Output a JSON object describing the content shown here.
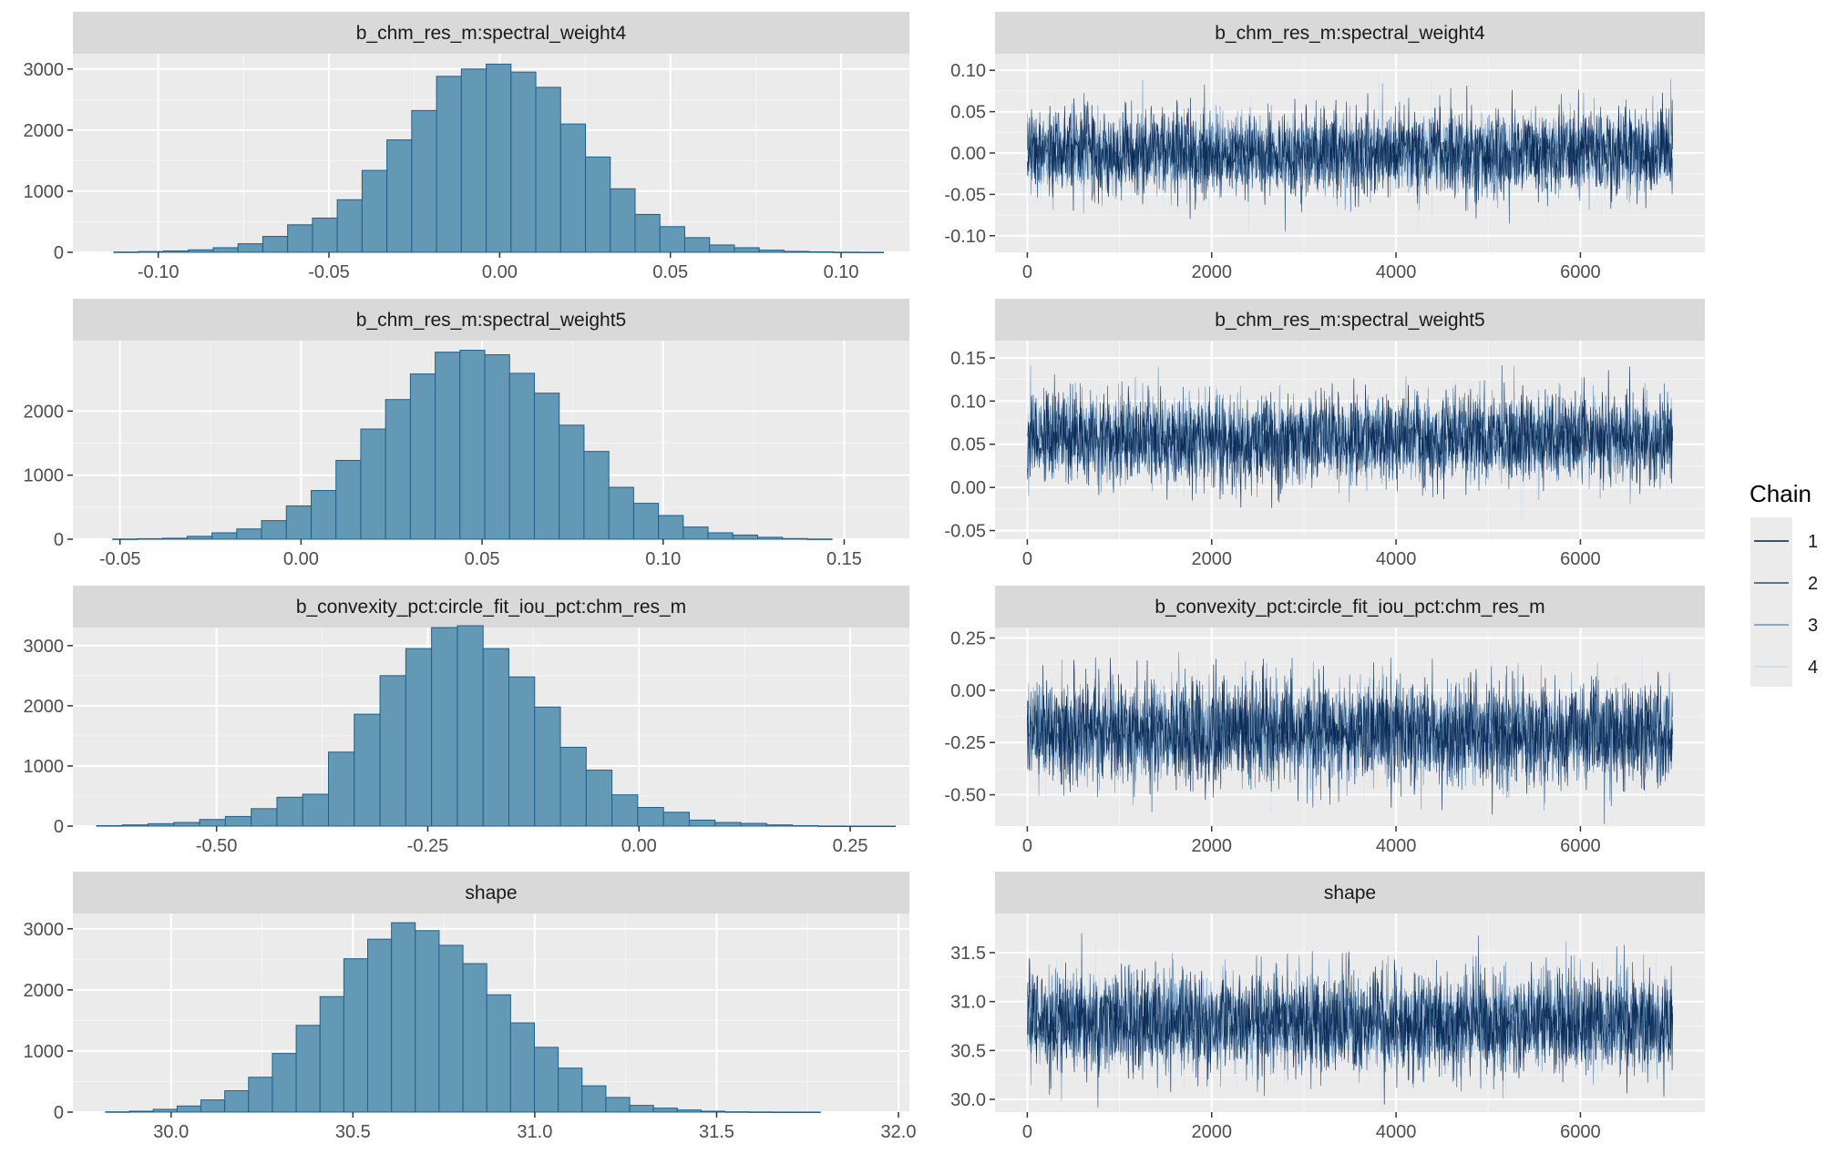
{
  "colors": {
    "panel_bg": "#ebebeb",
    "strip_bg": "#d9d9d9",
    "grid_major": "#ffffff",
    "hist_fill": "#6399b5",
    "hist_stroke": "#1f5f8b",
    "trace_band": "#d4e3ee",
    "chain_colors": [
      "#011f4b",
      "#1f4e7a",
      "#6a93bd",
      "#c6d9ea"
    ]
  },
  "legend": {
    "title": "Chain",
    "items": [
      "1",
      "2",
      "3",
      "4"
    ]
  },
  "chart_data": [
    {
      "type": "bar",
      "role": "histogram",
      "title": "b_chm_res_m:spectral_weight4",
      "x_ticks": [
        -0.1,
        -0.05,
        0.0,
        0.05,
        0.1
      ],
      "x_tick_labels": [
        "-0.10",
        "-0.05",
        "0.00",
        "0.05",
        "0.10"
      ],
      "y_ticks": [
        0,
        1000,
        2000,
        3000
      ],
      "y_tick_labels": [
        "0",
        "1000",
        "2000",
        "3000"
      ],
      "xlim": [
        -0.125,
        0.12
      ],
      "ylim": [
        0,
        3250
      ],
      "bin_edges_start": -0.113,
      "bin_width": 0.00727,
      "values": [
        5,
        12,
        22,
        40,
        75,
        140,
        260,
        450,
        560,
        860,
        1340,
        1840,
        2320,
        2880,
        3000,
        3080,
        2950,
        2700,
        2100,
        1560,
        1040,
        620,
        420,
        240,
        120,
        75,
        35,
        15,
        8,
        3,
        1
      ]
    },
    {
      "type": "line",
      "role": "trace",
      "title": "b_chm_res_m:spectral_weight4",
      "x_ticks": [
        0,
        2000,
        4000,
        6000
      ],
      "x_tick_labels": [
        "0",
        "2000",
        "4000",
        "6000"
      ],
      "y_ticks": [
        -0.1,
        -0.05,
        0.0,
        0.05,
        0.1
      ],
      "y_tick_labels": [
        "-0.10",
        "-0.05",
        "0.00",
        "0.05",
        "0.10"
      ],
      "xlim": [
        -350,
        7350
      ],
      "ylim": [
        -0.12,
        0.12
      ],
      "iterations": 7000,
      "mean": 0.0,
      "sd": 0.025,
      "band": [
        -0.028,
        0.028
      ]
    },
    {
      "type": "bar",
      "role": "histogram",
      "title": "b_chm_res_m:spectral_weight5",
      "x_ticks": [
        -0.05,
        0.0,
        0.05,
        0.1,
        0.15
      ],
      "x_tick_labels": [
        "-0.05",
        "0.00",
        "0.05",
        "0.10",
        "0.15"
      ],
      "y_ticks": [
        0,
        1000,
        2000
      ],
      "y_tick_labels": [
        "0",
        "1000",
        "2000"
      ],
      "xlim": [
        -0.063,
        0.168
      ],
      "ylim": [
        0,
        3100
      ],
      "bin_edges_start": -0.052,
      "bin_width": 0.00685,
      "values": [
        3,
        8,
        15,
        45,
        100,
        160,
        290,
        520,
        760,
        1230,
        1720,
        2180,
        2580,
        2920,
        2950,
        2880,
        2590,
        2280,
        1780,
        1370,
        810,
        560,
        370,
        190,
        100,
        65,
        30,
        10,
        3
      ]
    },
    {
      "type": "line",
      "role": "trace",
      "title": "b_chm_res_m:spectral_weight5",
      "x_ticks": [
        0,
        2000,
        4000,
        6000
      ],
      "x_tick_labels": [
        "0",
        "2000",
        "4000",
        "6000"
      ],
      "y_ticks": [
        -0.05,
        0.0,
        0.05,
        0.1,
        0.15
      ],
      "y_tick_labels": [
        "-0.05",
        "0.00",
        "0.05",
        "0.10",
        "0.15"
      ],
      "xlim": [
        -350,
        7350
      ],
      "ylim": [
        -0.06,
        0.17
      ],
      "iterations": 7000,
      "mean": 0.057,
      "sd": 0.025,
      "band": [
        0.029,
        0.085
      ]
    },
    {
      "type": "bar",
      "role": "histogram",
      "title": "b_convexity_pct:circle_fit_iou_pct:chm_res_m",
      "x_ticks": [
        -0.5,
        -0.25,
        0.0,
        0.25
      ],
      "x_tick_labels": [
        "-0.50",
        "-0.25",
        "0.00",
        "0.25"
      ],
      "y_ticks": [
        0,
        1000,
        2000,
        3000
      ],
      "y_tick_labels": [
        "0",
        "1000",
        "2000",
        "3000"
      ],
      "xlim": [
        -0.67,
        0.32
      ],
      "ylim": [
        0,
        3300
      ],
      "bin_edges_start": -0.642,
      "bin_width": 0.0305,
      "values": [
        8,
        20,
        40,
        60,
        110,
        160,
        290,
        480,
        530,
        1230,
        1860,
        2500,
        2950,
        3300,
        3330,
        2950,
        2480,
        1980,
        1310,
        930,
        520,
        310,
        230,
        100,
        60,
        45,
        20,
        8,
        2,
        1,
        1
      ]
    },
    {
      "type": "line",
      "role": "trace",
      "title": "b_convexity_pct:circle_fit_iou_pct:chm_res_m",
      "x_ticks": [
        0,
        2000,
        4000,
        6000
      ],
      "x_tick_labels": [
        "0",
        "2000",
        "4000",
        "6000"
      ],
      "y_ticks": [
        -0.5,
        -0.25,
        0.0,
        0.25
      ],
      "y_tick_labels": [
        "-0.50",
        "-0.25",
        "0.00",
        "0.25"
      ],
      "xlim": [
        -350,
        7350
      ],
      "ylim": [
        -0.65,
        0.3
      ],
      "iterations": 7000,
      "mean": -0.2,
      "sd": 0.12,
      "band": [
        -0.31,
        -0.09
      ]
    },
    {
      "type": "bar",
      "role": "histogram",
      "title": "shape",
      "x_ticks": [
        30.0,
        30.5,
        31.0,
        31.5,
        32.0
      ],
      "x_tick_labels": [
        "30.0",
        "30.5",
        "31.0",
        "31.5",
        "32.0"
      ],
      "y_ticks": [
        0,
        1000,
        2000,
        3000
      ],
      "y_tick_labels": [
        "0",
        "1000",
        "2000",
        "3000"
      ],
      "xlim": [
        29.73,
        32.03
      ],
      "ylim": [
        0,
        3250
      ],
      "bin_edges_start": 29.82,
      "bin_width": 0.0655,
      "values": [
        5,
        15,
        45,
        100,
        200,
        350,
        570,
        960,
        1420,
        1890,
        2510,
        2830,
        3100,
        2970,
        2730,
        2430,
        1920,
        1460,
        1060,
        720,
        430,
        240,
        110,
        65,
        35,
        15,
        5,
        3,
        1,
        1
      ]
    },
    {
      "type": "line",
      "role": "trace",
      "title": "shape",
      "x_ticks": [
        0,
        2000,
        4000,
        6000
      ],
      "x_tick_labels": [
        "0",
        "2000",
        "4000",
        "6000"
      ],
      "y_ticks": [
        30.0,
        30.5,
        31.0,
        31.5
      ],
      "y_tick_labels": [
        "30.0",
        "30.5",
        "31.0",
        "31.5"
      ],
      "xlim": [
        -350,
        7350
      ],
      "ylim": [
        29.87,
        31.9
      ],
      "iterations": 7000,
      "mean": 30.78,
      "sd": 0.25,
      "band": [
        30.5,
        31.06
      ]
    }
  ]
}
